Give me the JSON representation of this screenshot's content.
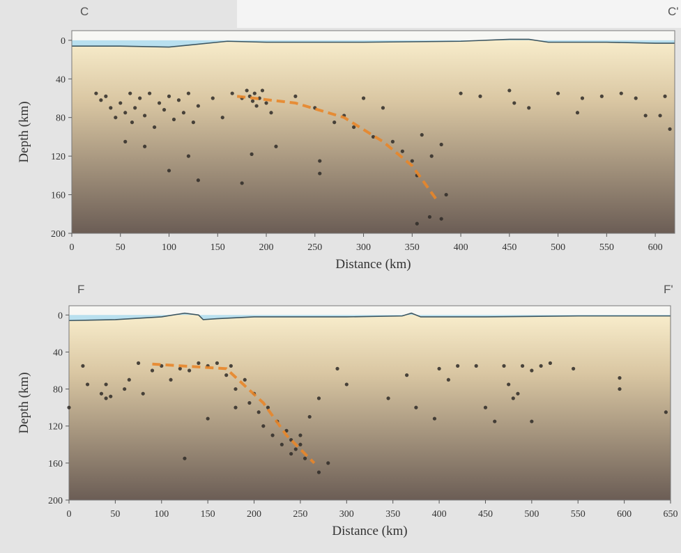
{
  "chart_data": [
    {
      "type": "scatter",
      "left_label": "C",
      "right_label": "C'",
      "xlabel": "Distance (km)",
      "ylabel": "Depth (km)",
      "xlim": [
        0,
        620
      ],
      "ylim": [
        200,
        -10
      ],
      "yticks": [
        0,
        40,
        80,
        120,
        160,
        200
      ],
      "xticks": [
        0,
        50,
        100,
        150,
        200,
        250,
        300,
        350,
        400,
        450,
        500,
        550,
        600
      ],
      "color": "#2f2b28",
      "water_color": "#a9d9ee",
      "x": [
        25,
        30,
        35,
        40,
        45,
        50,
        55,
        60,
        62,
        65,
        70,
        75,
        80,
        85,
        90,
        95,
        100,
        105,
        110,
        115,
        120,
        125,
        130,
        55,
        75,
        100,
        120,
        130,
        145,
        155,
        165,
        175,
        180,
        183,
        186,
        188,
        190,
        193,
        196,
        200,
        205,
        175,
        185,
        210,
        230,
        250,
        255,
        255,
        270,
        280,
        290,
        300,
        310,
        320,
        330,
        340,
        350,
        355,
        360,
        370,
        380,
        385,
        355,
        368,
        380,
        400,
        420,
        450,
        455,
        470,
        500,
        520,
        525,
        545,
        565,
        580,
        590,
        605,
        615,
        610
      ],
      "y": [
        55,
        62,
        58,
        70,
        80,
        65,
        75,
        55,
        85,
        70,
        60,
        78,
        55,
        90,
        65,
        72,
        58,
        82,
        62,
        75,
        55,
        85,
        68,
        105,
        110,
        135,
        120,
        145,
        60,
        80,
        55,
        60,
        52,
        58,
        63,
        55,
        68,
        60,
        52,
        65,
        75,
        148,
        118,
        110,
        58,
        70,
        125,
        138,
        85,
        78,
        90,
        60,
        100,
        70,
        105,
        115,
        125,
        140,
        98,
        120,
        108,
        160,
        190,
        183,
        185,
        55,
        58,
        52,
        65,
        70,
        55,
        75,
        60,
        58,
        55,
        60,
        78,
        78,
        92,
        58
      ],
      "surface": {
        "x": [
          0,
          50,
          100,
          120,
          150,
          160,
          200,
          300,
          400,
          450,
          470,
          490,
          550,
          600,
          620
        ],
        "y": [
          6,
          6,
          7,
          5,
          2,
          1,
          2,
          2,
          1,
          -1,
          -1,
          2,
          2,
          3,
          3
        ]
      },
      "slab": {
        "color": "#e8862a",
        "x": [
          170,
          230,
          280,
          320,
          350,
          375
        ],
        "y": [
          58,
          65,
          80,
          105,
          130,
          165
        ]
      }
    },
    {
      "type": "scatter",
      "left_label": "F",
      "right_label": "F'",
      "xlabel": "Distance (km)",
      "ylabel": "Depth (km)",
      "xlim": [
        0,
        650
      ],
      "ylim": [
        200,
        -10
      ],
      "yticks": [
        0,
        40,
        80,
        120,
        160,
        200
      ],
      "xticks": [
        0,
        50,
        100,
        150,
        200,
        250,
        300,
        350,
        400,
        450,
        500,
        550,
        600,
        650
      ],
      "color": "#2f2b28",
      "water_color": "#a9d9ee",
      "x": [
        15,
        20,
        35,
        40,
        40,
        45,
        60,
        65,
        75,
        80,
        90,
        100,
        110,
        120,
        130,
        140,
        150,
        160,
        170,
        175,
        180,
        190,
        195,
        200,
        205,
        210,
        215,
        220,
        225,
        230,
        235,
        240,
        245,
        250,
        250,
        255,
        240,
        260,
        270,
        280,
        290,
        300,
        125,
        150,
        180,
        270,
        345,
        365,
        375,
        395,
        400,
        410,
        420,
        440,
        450,
        460,
        470,
        475,
        480,
        485,
        490,
        500,
        500,
        510,
        520,
        545,
        595,
        595,
        645,
        0
      ],
      "y": [
        55,
        75,
        85,
        75,
        90,
        88,
        80,
        70,
        52,
        85,
        60,
        55,
        70,
        58,
        60,
        52,
        55,
        52,
        65,
        55,
        80,
        70,
        95,
        85,
        105,
        120,
        100,
        130,
        115,
        140,
        125,
        135,
        145,
        130,
        140,
        155,
        150,
        110,
        90,
        160,
        58,
        75,
        155,
        112,
        100,
        170,
        90,
        65,
        100,
        112,
        58,
        70,
        55,
        55,
        100,
        115,
        55,
        75,
        90,
        85,
        55,
        115,
        60,
        55,
        52,
        58,
        68,
        80,
        105,
        100
      ],
      "surface": {
        "x": [
          0,
          50,
          100,
          125,
          140,
          145,
          160,
          200,
          300,
          360,
          370,
          380,
          450,
          550,
          650
        ],
        "y": [
          6,
          5,
          2,
          -2,
          0,
          5,
          4,
          2,
          2,
          1,
          -2,
          2,
          2,
          1,
          1
        ]
      },
      "slab": {
        "color": "#e8862a",
        "x": [
          90,
          170,
          210,
          235,
          265
        ],
        "y": [
          53,
          58,
          95,
          130,
          160
        ]
      }
    }
  ]
}
